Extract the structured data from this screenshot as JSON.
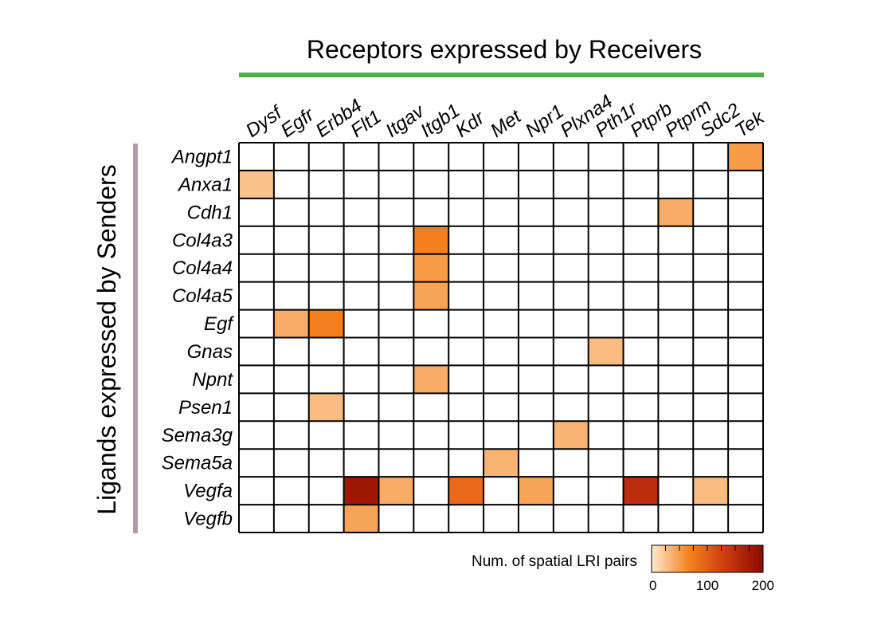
{
  "chart_data": {
    "type": "heatmap",
    "title": "Receptors expressed by Receivers",
    "ylabel": "Ligands expressed by Senders",
    "columns": [
      "Dysf",
      "Egfr",
      "Erbb4",
      "Flt1",
      "Itgav",
      "Itgb1",
      "Kdr",
      "Met",
      "Npr1",
      "Plxna4",
      "Pth1r",
      "Ptprb",
      "Ptprm",
      "Sdc2",
      "Tek"
    ],
    "rows": [
      "Angpt1",
      "Anxa1",
      "Cdh1",
      "Col4a3",
      "Col4a4",
      "Col4a5",
      "Egf",
      "Gnas",
      "Npnt",
      "Psen1",
      "Sema3g",
      "Sema5a",
      "Vegfa",
      "Vegfb"
    ],
    "values": [
      [
        0,
        0,
        0,
        0,
        0,
        0,
        0,
        0,
        0,
        0,
        0,
        0,
        0,
        0,
        50
      ],
      [
        25,
        0,
        0,
        0,
        0,
        0,
        0,
        0,
        0,
        0,
        0,
        0,
        0,
        0,
        0
      ],
      [
        0,
        0,
        0,
        0,
        0,
        0,
        0,
        0,
        0,
        0,
        0,
        0,
        40,
        0,
        0
      ],
      [
        0,
        0,
        0,
        0,
        0,
        70,
        0,
        0,
        0,
        0,
        0,
        0,
        0,
        0,
        0
      ],
      [
        0,
        0,
        0,
        0,
        0,
        50,
        0,
        0,
        0,
        0,
        0,
        0,
        0,
        0,
        0
      ],
      [
        0,
        0,
        0,
        0,
        0,
        45,
        0,
        0,
        0,
        0,
        0,
        0,
        0,
        0,
        0
      ],
      [
        0,
        40,
        70,
        0,
        0,
        0,
        0,
        0,
        0,
        0,
        0,
        0,
        0,
        0,
        0
      ],
      [
        0,
        0,
        0,
        0,
        0,
        0,
        0,
        0,
        0,
        0,
        30,
        0,
        0,
        0,
        0
      ],
      [
        0,
        0,
        0,
        0,
        0,
        40,
        0,
        0,
        0,
        0,
        0,
        0,
        0,
        0,
        0
      ],
      [
        0,
        0,
        30,
        0,
        0,
        0,
        0,
        0,
        0,
        0,
        0,
        0,
        0,
        0,
        0
      ],
      [
        0,
        0,
        0,
        0,
        0,
        0,
        0,
        0,
        0,
        35,
        0,
        0,
        0,
        0,
        0
      ],
      [
        0,
        0,
        0,
        0,
        0,
        0,
        0,
        35,
        0,
        0,
        0,
        0,
        0,
        0,
        0
      ],
      [
        0,
        0,
        0,
        180,
        40,
        0,
        90,
        0,
        45,
        0,
        0,
        150,
        0,
        30,
        0
      ],
      [
        0,
        0,
        0,
        45,
        0,
        0,
        0,
        0,
        0,
        0,
        0,
        0,
        0,
        0,
        0
      ]
    ],
    "colorbar": {
      "label": "Num. of spatial LRI pairs",
      "range": [
        0,
        200
      ],
      "ticks": [
        0,
        100,
        200
      ],
      "colors": [
        "#fde9cf",
        "#f5831e",
        "#cc3a0f",
        "#8b0a00"
      ]
    },
    "accents": {
      "top_bar": "#4caf50",
      "side_bar": "#b29aa7"
    }
  }
}
